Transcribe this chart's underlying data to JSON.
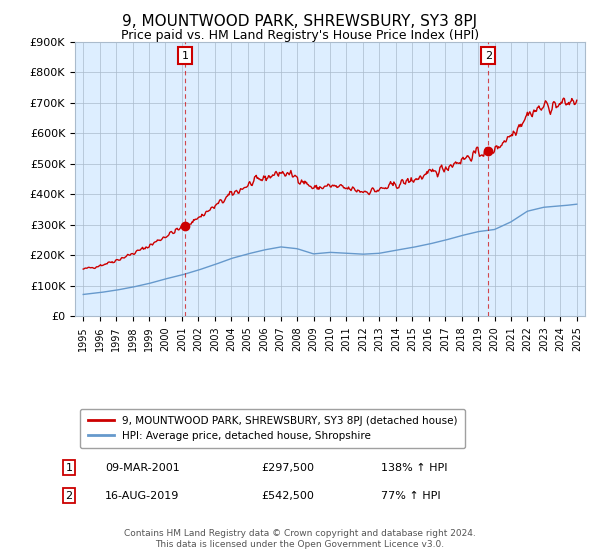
{
  "title": "9, MOUNTWOOD PARK, SHREWSBURY, SY3 8PJ",
  "subtitle": "Price paid vs. HM Land Registry's House Price Index (HPI)",
  "legend_line1": "9, MOUNTWOOD PARK, SHREWSBURY, SY3 8PJ (detached house)",
  "legend_line2": "HPI: Average price, detached house, Shropshire",
  "footer": "Contains HM Land Registry data © Crown copyright and database right 2024.\nThis data is licensed under the Open Government Licence v3.0.",
  "marker1": {
    "date": "09-MAR-2001",
    "price": 297500,
    "hpi_pct": "138% ↑ HPI",
    "x": 2001.19
  },
  "marker2": {
    "date": "16-AUG-2019",
    "price": 542500,
    "hpi_pct": "77% ↑ HPI",
    "x": 2019.62
  },
  "ylim": [
    0,
    900000
  ],
  "xlim": [
    1994.5,
    2025.5
  ],
  "yticks": [
    0,
    100000,
    200000,
    300000,
    400000,
    500000,
    600000,
    700000,
    800000,
    900000
  ],
  "ytick_labels": [
    "£0",
    "£100K",
    "£200K",
    "£300K",
    "£400K",
    "£500K",
    "£600K",
    "£700K",
    "£800K",
    "£900K"
  ],
  "xticks": [
    1995,
    1996,
    1997,
    1998,
    1999,
    2000,
    2001,
    2002,
    2003,
    2004,
    2005,
    2006,
    2007,
    2008,
    2009,
    2010,
    2011,
    2012,
    2013,
    2014,
    2015,
    2016,
    2017,
    2018,
    2019,
    2020,
    2021,
    2022,
    2023,
    2024,
    2025
  ],
  "red_line_color": "#cc0000",
  "blue_line_color": "#6699cc",
  "plot_bg_color": "#ddeeff",
  "fig_bg_color": "#ffffff",
  "grid_color": "#aabbcc",
  "vline_color": "#cc0000",
  "title_fontsize": 11,
  "subtitle_fontsize": 9,
  "hpi_years": [
    1995,
    1996,
    1997,
    1998,
    1999,
    2000,
    2001,
    2002,
    2003,
    2004,
    2005,
    2006,
    2007,
    2008,
    2009,
    2010,
    2011,
    2012,
    2013,
    2014,
    2015,
    2016,
    2017,
    2018,
    2019,
    2020,
    2021,
    2022,
    2023,
    2024,
    2025
  ],
  "hpi_vals": [
    72000,
    78000,
    86000,
    96000,
    108000,
    123000,
    136000,
    152000,
    170000,
    190000,
    205000,
    218000,
    228000,
    222000,
    205000,
    210000,
    207000,
    204000,
    207000,
    217000,
    226000,
    237000,
    250000,
    265000,
    278000,
    285000,
    310000,
    345000,
    358000,
    362000,
    368000
  ]
}
